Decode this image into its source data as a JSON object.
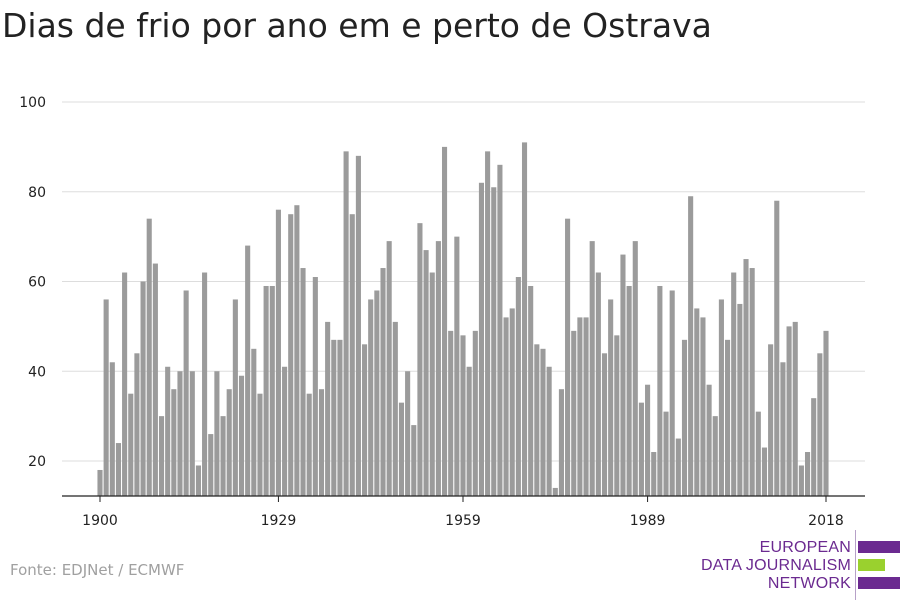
{
  "title": "Dias de frio por ano em e perto de Ostrava",
  "source": "Fonte: EDJNet / ECMWF",
  "logo": {
    "lines": [
      "EUROPEAN",
      "DATA JOURNALISM",
      "NETWORK"
    ],
    "colors": {
      "purple": "#6b2a90",
      "green": "#9ad12e"
    }
  },
  "colors": {
    "bar": "#9b9b9b",
    "grid": "#dddddd",
    "axis": "#222222"
  },
  "chart_data": {
    "type": "bar",
    "title": "Dias de frio por ano em e perto de Ostrava",
    "xlabel": "",
    "ylabel": "",
    "x_start": 1900,
    "x_ticks": [
      "1900",
      "1929",
      "1959",
      "1989",
      "2018"
    ],
    "y_ticks": [
      "20",
      "40",
      "60",
      "80",
      "100"
    ],
    "ylim": [
      12,
      100
    ],
    "grid": true,
    "values": [
      18,
      56,
      42,
      24,
      62,
      35,
      44,
      60,
      74,
      64,
      30,
      41,
      36,
      40,
      58,
      40,
      19,
      62,
      26,
      40,
      30,
      36,
      56,
      39,
      68,
      45,
      35,
      59,
      59,
      76,
      41,
      75,
      77,
      63,
      35,
      61,
      36,
      51,
      47,
      47,
      89,
      75,
      88,
      46,
      56,
      58,
      63,
      69,
      51,
      33,
      40,
      28,
      73,
      67,
      62,
      69,
      90,
      49,
      70,
      48,
      41,
      49,
      82,
      89,
      81,
      86,
      52,
      54,
      61,
      91,
      59,
      46,
      45,
      41,
      14,
      36,
      74,
      49,
      52,
      52,
      69,
      62,
      44,
      56,
      48,
      66,
      59,
      69,
      33,
      37,
      22,
      59,
      31,
      58,
      25,
      47,
      79,
      54,
      52,
      37,
      30,
      56,
      47,
      62,
      55,
      65,
      63,
      31,
      23,
      46,
      78,
      42,
      50,
      51,
      19,
      22,
      34,
      44,
      49
    ]
  }
}
